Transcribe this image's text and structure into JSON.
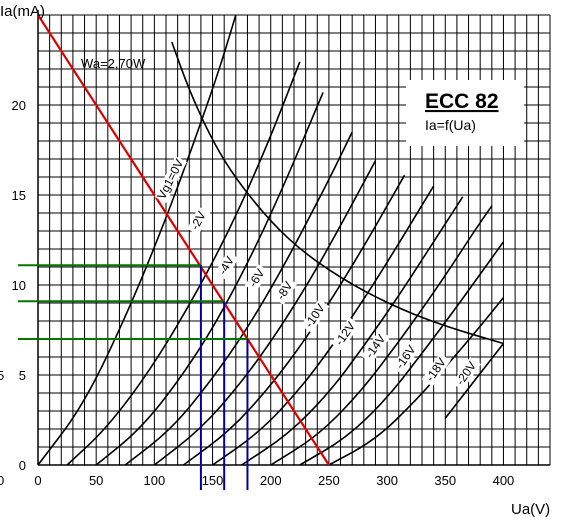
{
  "chart_data": {
    "type": "line",
    "title": "ECC 82",
    "subtitle": "Ia=f(Ua)",
    "xlabel": "Ua(V)",
    "ylabel": "Ia(mA)",
    "xlim": [
      0,
      440
    ],
    "ylim": [
      0,
      25
    ],
    "x_ticks": [
      0,
      50,
      100,
      150,
      200,
      250,
      300,
      350,
      400
    ],
    "y_ticks": [
      0,
      5,
      10,
      15,
      20
    ],
    "x_tick_labels": [
      "0",
      "50",
      "100",
      "150",
      "200",
      "250",
      "300",
      "350",
      "400"
    ],
    "y_tick_labels": [
      "0",
      "5",
      "10",
      "15",
      "20"
    ],
    "left_edge_labels": [
      "0",
      "5"
    ],
    "grid": true,
    "series": [
      {
        "name": "Vg1=0V",
        "color": "#000000",
        "x": [
          0,
          40,
          80,
          110,
          130,
          155,
          170
        ],
        "y": [
          0,
          3.4,
          8.9,
          13.7,
          17.2,
          21.8,
          25
        ]
      },
      {
        "name": "-2V",
        "color": "#000000",
        "x": [
          25,
          60,
          100,
          140,
          170,
          195,
          210,
          225
        ],
        "y": [
          0,
          2.1,
          5.6,
          10.0,
          13.8,
          17.5,
          19.9,
          22.4
        ]
      },
      {
        "name": "-4V",
        "color": "#000000",
        "x": [
          50,
          90,
          130,
          160,
          190,
          215,
          230,
          245
        ],
        "y": [
          0,
          2.1,
          5.5,
          8.7,
          12.5,
          16.1,
          18.4,
          20.7
        ]
      },
      {
        "name": "-6V",
        "color": "#000000",
        "x": [
          75,
          115,
          150,
          180,
          210,
          240,
          255,
          270
        ],
        "y": [
          0,
          2.0,
          4.8,
          7.6,
          10.9,
          14.6,
          16.5,
          18.5
        ]
      },
      {
        "name": "-8V",
        "color": "#000000",
        "x": [
          100,
          140,
          175,
          205,
          235,
          260,
          275,
          290
        ],
        "y": [
          0,
          2.0,
          4.6,
          7.3,
          10.4,
          13.3,
          15.1,
          16.9
        ]
      },
      {
        "name": "-10V",
        "color": "#000000",
        "x": [
          125,
          165,
          200,
          230,
          260,
          285,
          300,
          315
        ],
        "y": [
          0,
          1.9,
          4.4,
          7.0,
          10.0,
          12.7,
          14.4,
          16.1
        ]
      },
      {
        "name": "-12V",
        "color": "#000000",
        "x": [
          150,
          190,
          225,
          255,
          285,
          310,
          325,
          340
        ],
        "y": [
          0,
          1.8,
          4.2,
          6.8,
          9.7,
          12.3,
          13.9,
          15.5
        ]
      },
      {
        "name": "-14V",
        "color": "#000000",
        "x": [
          175,
          215,
          250,
          280,
          310,
          335,
          350,
          365
        ],
        "y": [
          0,
          1.7,
          4.0,
          6.6,
          9.4,
          11.9,
          13.4,
          14.9
        ]
      },
      {
        "name": "-16V",
        "color": "#000000",
        "x": [
          200,
          240,
          275,
          305,
          335,
          360,
          375,
          390
        ],
        "y": [
          0,
          1.6,
          3.9,
          6.4,
          9.1,
          11.5,
          13.0,
          14.4
        ]
      },
      {
        "name": "-18V",
        "color": "#000000",
        "x": [
          225,
          265,
          300,
          330,
          360,
          380,
          400
        ],
        "y": [
          0,
          1.5,
          3.7,
          6.2,
          8.8,
          10.6,
          12.4
        ]
      },
      {
        "name": "-20V",
        "color": "#000000",
        "x": [
          250,
          290,
          325,
          355,
          380,
          400
        ],
        "y": [
          0,
          1.4,
          3.6,
          5.8,
          7.7,
          9.3
        ]
      },
      {
        "name": "Wa=2,70W",
        "color": "#000000",
        "x": [
          115,
          130,
          150,
          170,
          200,
          230,
          270,
          310,
          350,
          400
        ],
        "y": [
          23.5,
          20.8,
          18.0,
          15.9,
          13.5,
          11.7,
          10.0,
          8.7,
          7.7,
          6.75
        ]
      },
      {
        "name": "",
        "color": "#000000",
        "x": [
          350,
          400
        ],
        "y": [
          2.6,
          6.75
        ]
      },
      {
        "name": "",
        "color": "#dd0000",
        "x": [
          0,
          250
        ],
        "y": [
          25,
          0
        ]
      }
    ],
    "operating_points": [
      {
        "x": 140,
        "y": 11.1,
        "color_h": "#007700",
        "color_v": "#000099"
      },
      {
        "x": 160,
        "y": 9.1,
        "color_h": "#007700",
        "color_v": "#000099"
      },
      {
        "x": 180,
        "y": 7.0,
        "color_h": "#007700",
        "color_v": "#000099"
      }
    ],
    "curve_labels": [
      {
        "text": "Vg1=0V",
        "x": 116,
        "y": 15.8,
        "angle": -63
      },
      {
        "text": "-2V",
        "x": 140,
        "y": 13.5,
        "angle": -62
      },
      {
        "text": "-4V",
        "x": 164,
        "y": 11.0,
        "angle": -60
      },
      {
        "text": "-6V",
        "x": 190,
        "y": 10.3,
        "angle": -58
      },
      {
        "text": "-8V",
        "x": 214,
        "y": 9.6,
        "angle": -57
      },
      {
        "text": "-10V",
        "x": 240,
        "y": 8.2,
        "angle": -56
      },
      {
        "text": "-12V",
        "x": 266,
        "y": 7.2,
        "angle": -55
      },
      {
        "text": "-14V",
        "x": 292,
        "y": 6.5,
        "angle": -55
      },
      {
        "text": "-16V",
        "x": 318,
        "y": 5.9,
        "angle": -55
      },
      {
        "text": "-18V",
        "x": 344,
        "y": 5.2,
        "angle": -55
      },
      {
        "text": "-20V",
        "x": 370,
        "y": 5.0,
        "angle": -55
      }
    ],
    "annotation": {
      "text": "Wa=2,70W",
      "x": 37,
      "y": 22.5
    }
  }
}
